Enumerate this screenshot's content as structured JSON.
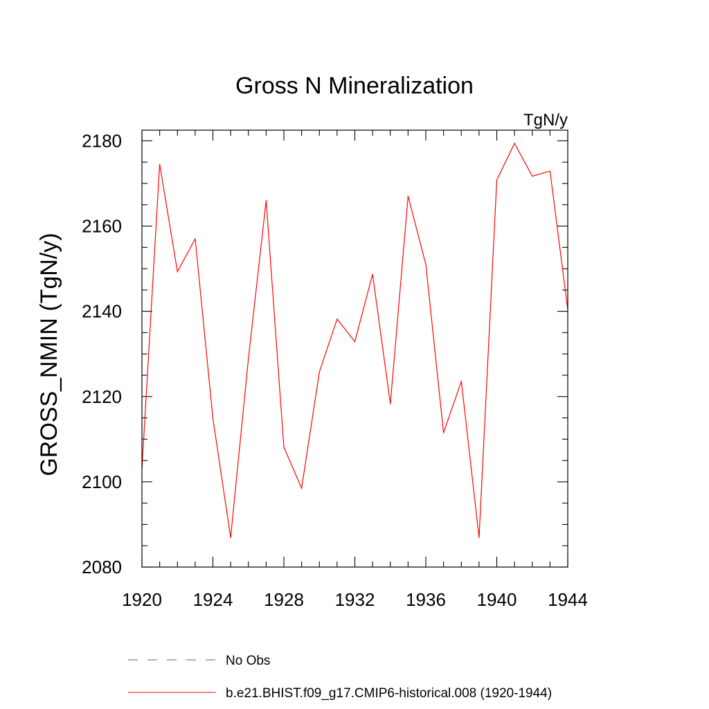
{
  "chart_data": {
    "type": "line",
    "title": "Gross N Mineralization",
    "units_label": "TgN/y",
    "ylabel": "GROSS_NMIN  (TgN/y)",
    "xlabel": "",
    "xlim": [
      1920,
      1944
    ],
    "ylim": [
      2080,
      2182.5
    ],
    "x_ticks": [
      1920,
      1924,
      1928,
      1932,
      1936,
      1940,
      1944
    ],
    "y_ticks": [
      2080,
      2100,
      2120,
      2140,
      2160,
      2180
    ],
    "x_minor_step": 1,
    "y_minor_step": 5,
    "grid": false,
    "x": [
      1920,
      1921,
      1922,
      1923,
      1924,
      1925,
      1926,
      1927,
      1928,
      1929,
      1930,
      1931,
      1932,
      1933,
      1934,
      1935,
      1936,
      1937,
      1938,
      1939,
      1940,
      1941,
      1942,
      1943,
      1944
    ],
    "series": [
      {
        "name": "b.e21.BHIST.f09_g17.CMIP6-historical.008 (1920-1944)",
        "color": "#ff0000",
        "style": "solid",
        "values": [
          2103.0,
          2174.5,
          2149.3,
          2157.0,
          2114.9,
          2086.9,
          2128.9,
          2166.0,
          2108.1,
          2098.5,
          2125.8,
          2138.2,
          2132.9,
          2148.7,
          2118.3,
          2167.0,
          2151.0,
          2111.5,
          2123.6,
          2086.9,
          2170.8,
          2179.4,
          2171.7,
          2172.9,
          2140.4
        ]
      }
    ],
    "legend": [
      {
        "label": "No Obs",
        "color": "#5a5ab4",
        "style": "dashed"
      },
      {
        "label": "b.e21.BHIST.f09_g17.CMIP6-historical.008 (1920-1944)",
        "color": "#ff0000",
        "style": "solid"
      }
    ]
  }
}
